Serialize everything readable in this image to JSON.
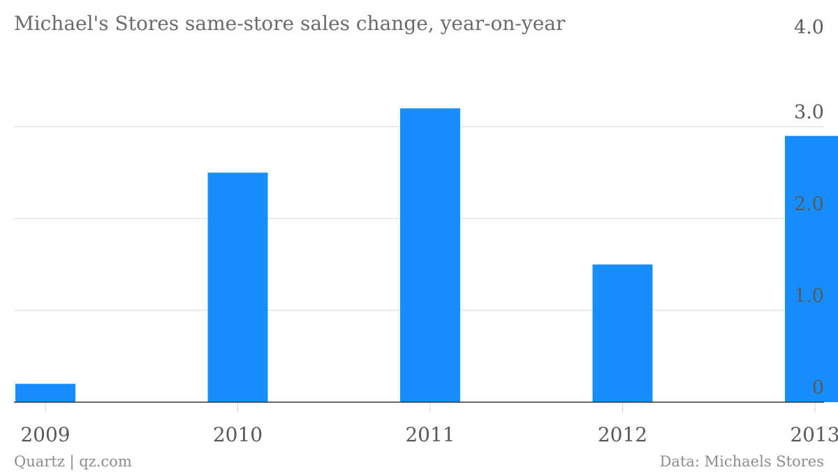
{
  "chart_data": {
    "type": "bar",
    "title": "Michael's Stores same-store sales change, year-on-year",
    "categories": [
      "2009",
      "2010",
      "2011",
      "2012",
      "2013"
    ],
    "values": [
      0.2,
      2.5,
      3.2,
      1.5,
      2.9
    ],
    "ylim": [
      0,
      4
    ],
    "yticks": [
      0,
      1,
      2,
      3,
      4
    ],
    "ytick_labels": [
      "0",
      "1.0",
      "2.0",
      "3.0",
      "4.0"
    ],
    "grid": true,
    "y_axis_side": "right",
    "bar_color": "#168eff"
  },
  "footer": {
    "source_left": "Quartz | qz.com",
    "source_right": "Data: Michaels Stores"
  }
}
